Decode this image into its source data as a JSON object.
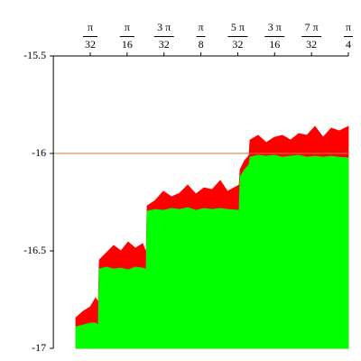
{
  "chart_data": {
    "type": "area",
    "x": [
      0.0597,
      0.079,
      0.0982,
      0.1126,
      0.1198,
      0.1222,
      0.1414,
      0.1607,
      0.1799,
      0.1991,
      0.2183,
      0.2375,
      0.2472,
      0.2496,
      0.2712,
      0.2928,
      0.3144,
      0.3361,
      0.3577,
      0.3793,
      0.4009,
      0.4226,
      0.4442,
      0.4634,
      0.4947,
      0.4971,
      0.5091,
      0.5211,
      0.5235,
      0.5451,
      0.5667,
      0.5884,
      0.61,
      0.6316,
      0.6533,
      0.6749,
      0.6965,
      0.7181,
      0.7398,
      0.7614,
      0.7854
    ],
    "series": [
      {
        "color": "#ff0000",
        "values": [
          -16.843,
          -16.81,
          -16.787,
          -16.741,
          -16.764,
          -16.546,
          -16.509,
          -16.472,
          -16.5,
          -16.454,
          -16.486,
          -16.463,
          -16.509,
          -16.269,
          -16.241,
          -16.194,
          -16.222,
          -16.204,
          -16.162,
          -16.208,
          -16.176,
          -16.185,
          -16.139,
          -16.194,
          -16.162,
          -16.083,
          -16.037,
          -16.009,
          -15.931,
          -15.907,
          -15.944,
          -15.917,
          -15.907,
          -15.931,
          -15.898,
          -15.907,
          -15.861,
          -15.917,
          -15.87,
          -15.884,
          -15.861
        ]
      },
      {
        "color": "#00ff00",
        "values": [
          -16.889,
          -16.88,
          -16.87,
          -16.87,
          -16.88,
          -16.593,
          -16.583,
          -16.593,
          -16.588,
          -16.597,
          -16.583,
          -16.588,
          -16.593,
          -16.296,
          -16.287,
          -16.292,
          -16.282,
          -16.287,
          -16.278,
          -16.292,
          -16.282,
          -16.287,
          -16.282,
          -16.287,
          -16.292,
          -16.12,
          -16.083,
          -16.056,
          -16.019,
          -16.009,
          -16.014,
          -16.009,
          -16.019,
          -16.014,
          -16.009,
          -16.019,
          -16.014,
          -16.019,
          -16.014,
          -16.019,
          -16.023
        ]
      }
    ],
    "hline": {
      "value": -16,
      "color": "#c8783c"
    },
    "xlim": [
      0,
      0.7854
    ],
    "xticks": [
      {
        "value": 0.09817,
        "label": "π/32"
      },
      {
        "value": 0.19635,
        "label": "π/16"
      },
      {
        "value": 0.29452,
        "label": "3 π/32"
      },
      {
        "value": 0.3927,
        "label": "π/8"
      },
      {
        "value": 0.49087,
        "label": "5 π/32"
      },
      {
        "value": 0.58905,
        "label": "3 π/16"
      },
      {
        "value": 0.68722,
        "label": "7 π/32"
      },
      {
        "value": 0.7854,
        "label": "π/4"
      }
    ],
    "ylim": [
      -17,
      -15.5
    ],
    "yticks": [
      -17,
      -16.5,
      -16,
      -15.5
    ]
  }
}
